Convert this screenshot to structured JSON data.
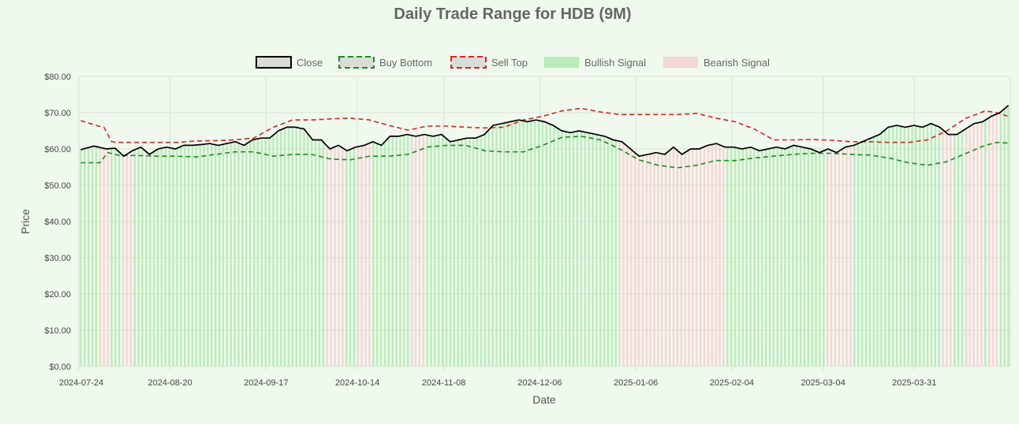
{
  "chart_data": {
    "type": "line",
    "title": "Daily Trade Range for HDB (9M)",
    "xlabel": "Date",
    "ylabel": "Price",
    "ylim": [
      0,
      80
    ],
    "y_ticks": [
      {
        "value": 0,
        "label": "$0.00"
      },
      {
        "value": 10,
        "label": "$10.00"
      },
      {
        "value": 20,
        "label": "$20.00"
      },
      {
        "value": 30,
        "label": "$30.00"
      },
      {
        "value": 40,
        "label": "$40.00"
      },
      {
        "value": 50,
        "label": "$50.00"
      },
      {
        "value": 60,
        "label": "$60.00"
      },
      {
        "value": 70,
        "label": "$70.00"
      },
      {
        "value": 80,
        "label": "$80.00"
      }
    ],
    "x_tick_labels": [
      "2024-07-24",
      "2024-08-20",
      "2024-09-17",
      "2024-10-14",
      "2024-11-08",
      "2024-12-06",
      "2025-01-06",
      "2025-02-04",
      "2025-03-04",
      "2025-03-31"
    ],
    "x_tick_indices": [
      0,
      19,
      39,
      58,
      76,
      96,
      116,
      136,
      155,
      174
    ],
    "n_days": 195,
    "legend": [
      {
        "label": "Close",
        "color": "#000000",
        "fill": "#d9ddd6",
        "dashed": false
      },
      {
        "label": "Buy Bottom",
        "color": "#1e8c1e",
        "fill": "#d9ddd6",
        "dashed": true
      },
      {
        "label": "Sell Top",
        "color": "#e02020",
        "fill": "#d9ddd6",
        "dashed": true
      },
      {
        "label": "Bullish Signal",
        "color": "#b8ecb8",
        "fill": "#b8ecb8",
        "dashed": false
      },
      {
        "label": "Bearish Signal",
        "color": "#f3d6d6",
        "fill": "#f3d6d6",
        "dashed": false
      }
    ],
    "colors": {
      "bullish": "#b9ecb9",
      "bearish": "#f5d5d5",
      "grid": "#d6e3d2",
      "close": "#000000",
      "buy": "#1e8c1e",
      "sell": "#e02020"
    },
    "series": [
      {
        "name": "Close",
        "keypoints": [
          [
            0,
            59.8
          ],
          [
            3,
            60.8
          ],
          [
            6,
            60
          ],
          [
            8,
            60.2
          ],
          [
            10,
            58
          ],
          [
            12,
            59.5
          ],
          [
            14,
            60.5
          ],
          [
            16,
            58.5
          ],
          [
            18,
            60
          ],
          [
            20,
            60.5
          ],
          [
            22,
            60
          ],
          [
            24,
            61
          ],
          [
            26,
            61
          ],
          [
            28,
            61.2
          ],
          [
            30,
            61.5
          ],
          [
            32,
            61
          ],
          [
            34,
            61.5
          ],
          [
            36,
            62
          ],
          [
            38,
            61
          ],
          [
            40,
            62.5
          ],
          [
            42,
            63
          ],
          [
            44,
            63
          ],
          [
            46,
            65
          ],
          [
            48,
            66
          ],
          [
            50,
            66
          ],
          [
            52,
            65.5
          ],
          [
            54,
            62.5
          ],
          [
            56,
            62.5
          ],
          [
            58,
            60
          ],
          [
            60,
            61
          ],
          [
            62,
            59.5
          ],
          [
            64,
            60.5
          ],
          [
            66,
            61
          ],
          [
            68,
            62
          ],
          [
            70,
            61
          ],
          [
            72,
            63.5
          ],
          [
            74,
            63.5
          ],
          [
            76,
            64
          ],
          [
            78,
            63.5
          ],
          [
            80,
            64
          ],
          [
            82,
            63.5
          ],
          [
            84,
            64
          ],
          [
            86,
            62
          ],
          [
            88,
            62.5
          ],
          [
            90,
            63
          ],
          [
            92,
            63
          ],
          [
            94,
            64
          ],
          [
            96,
            66.5
          ],
          [
            98,
            67
          ],
          [
            100,
            67.5
          ],
          [
            102,
            68
          ],
          [
            104,
            67.5
          ],
          [
            106,
            68
          ],
          [
            108,
            67.5
          ],
          [
            110,
            66.5
          ],
          [
            112,
            65
          ],
          [
            114,
            64.5
          ],
          [
            116,
            65
          ],
          [
            118,
            64.5
          ],
          [
            120,
            64
          ],
          [
            122,
            63.5
          ],
          [
            124,
            62.5
          ],
          [
            126,
            62
          ],
          [
            128,
            60
          ],
          [
            130,
            58
          ],
          [
            132,
            58.5
          ],
          [
            134,
            59
          ],
          [
            136,
            58.5
          ],
          [
            138,
            60.5
          ],
          [
            140,
            58.5
          ],
          [
            142,
            60
          ],
          [
            144,
            60
          ],
          [
            146,
            61
          ],
          [
            148,
            61.5
          ],
          [
            150,
            60.5
          ],
          [
            152,
            60.5
          ],
          [
            154,
            60
          ],
          [
            156,
            60.5
          ],
          [
            158,
            59.5
          ],
          [
            160,
            60
          ],
          [
            162,
            60.5
          ],
          [
            164,
            60
          ],
          [
            166,
            61
          ],
          [
            168,
            60.5
          ],
          [
            170,
            60
          ],
          [
            172,
            59
          ],
          [
            174,
            60
          ],
          [
            176,
            59
          ],
          [
            178,
            60.5
          ],
          [
            180,
            61
          ],
          [
            182,
            62
          ],
          [
            184,
            63
          ],
          [
            186,
            64
          ],
          [
            188,
            66
          ],
          [
            190,
            66.5
          ],
          [
            192,
            66
          ],
          [
            194,
            66.5
          ],
          [
            196,
            66
          ],
          [
            198,
            67
          ],
          [
            200,
            66
          ],
          [
            202,
            64
          ],
          [
            204,
            64
          ],
          [
            206,
            65.5
          ],
          [
            208,
            67
          ],
          [
            210,
            67.5
          ],
          [
            212,
            69
          ],
          [
            214,
            70
          ],
          [
            216,
            72
          ]
        ]
      },
      {
        "name": "Buy Bottom",
        "keypoints": [
          [
            0,
            56.2
          ],
          [
            5,
            56.2
          ],
          [
            7,
            59
          ],
          [
            10,
            58.2
          ],
          [
            15,
            58.2
          ],
          [
            20,
            58
          ],
          [
            25,
            58
          ],
          [
            30,
            57.8
          ],
          [
            35,
            58.5
          ],
          [
            40,
            59.2
          ],
          [
            45,
            59.2
          ],
          [
            50,
            58
          ],
          [
            55,
            58.5
          ],
          [
            60,
            58.5
          ],
          [
            65,
            57.2
          ],
          [
            70,
            57
          ],
          [
            75,
            58
          ],
          [
            80,
            58
          ],
          [
            85,
            58.5
          ],
          [
            90,
            60.5
          ],
          [
            95,
            61
          ],
          [
            100,
            61
          ],
          [
            105,
            59.5
          ],
          [
            110,
            59.2
          ],
          [
            115,
            59.2
          ],
          [
            120,
            61
          ],
          [
            125,
            63.2
          ],
          [
            130,
            63.5
          ],
          [
            135,
            62.5
          ],
          [
            140,
            60
          ],
          [
            145,
            57
          ],
          [
            150,
            55.5
          ],
          [
            155,
            54.8
          ],
          [
            160,
            55.5
          ],
          [
            165,
            56.8
          ],
          [
            170,
            56.8
          ],
          [
            175,
            57.5
          ],
          [
            180,
            58
          ],
          [
            185,
            58.5
          ],
          [
            190,
            58.8
          ],
          [
            195,
            58.8
          ],
          [
            200,
            58.5
          ],
          [
            205,
            58.3
          ],
          [
            210,
            57.5
          ],
          [
            215,
            56.2
          ],
          [
            220,
            55.5
          ],
          [
            225,
            56.5
          ],
          [
            230,
            58.8
          ],
          [
            235,
            61
          ],
          [
            238,
            61.8
          ],
          [
            241,
            61.6
          ]
        ]
      },
      {
        "name": "Sell Top",
        "keypoints": [
          [
            0,
            67.8
          ],
          [
            4,
            66.5
          ],
          [
            6,
            66
          ],
          [
            8,
            62
          ],
          [
            10,
            61.8
          ],
          [
            15,
            61.8
          ],
          [
            20,
            61.8
          ],
          [
            25,
            61.8
          ],
          [
            30,
            62.2
          ],
          [
            35,
            62.3
          ],
          [
            40,
            62.5
          ],
          [
            45,
            63
          ],
          [
            50,
            66
          ],
          [
            55,
            68
          ],
          [
            60,
            68
          ],
          [
            65,
            68.3
          ],
          [
            70,
            68.5
          ],
          [
            75,
            68
          ],
          [
            80,
            66.5
          ],
          [
            85,
            65.2
          ],
          [
            90,
            66.3
          ],
          [
            95,
            66.3
          ],
          [
            100,
            66
          ],
          [
            105,
            65.8
          ],
          [
            110,
            66
          ],
          [
            115,
            68
          ],
          [
            120,
            69
          ],
          [
            125,
            70.5
          ],
          [
            130,
            71.2
          ],
          [
            135,
            70.2
          ],
          [
            140,
            69.5
          ],
          [
            145,
            69.5
          ],
          [
            150,
            69.5
          ],
          [
            155,
            69.5
          ],
          [
            160,
            69.8
          ],
          [
            165,
            68.5
          ],
          [
            170,
            67.5
          ],
          [
            175,
            65.5
          ],
          [
            180,
            62.5
          ],
          [
            185,
            62.5
          ],
          [
            190,
            62.6
          ],
          [
            195,
            62.4
          ],
          [
            200,
            62
          ],
          [
            205,
            62
          ],
          [
            210,
            61.8
          ],
          [
            215,
            61.8
          ],
          [
            220,
            62.5
          ],
          [
            225,
            65
          ],
          [
            230,
            68.5
          ],
          [
            235,
            70.5
          ],
          [
            238,
            70
          ],
          [
            241,
            69
          ]
        ]
      }
    ],
    "bearish_ranges": [
      [
        5,
        7
      ],
      [
        11,
        13
      ],
      [
        64,
        68
      ],
      [
        72,
        75
      ],
      [
        86,
        89
      ],
      [
        140,
        158
      ],
      [
        158,
        167
      ],
      [
        194,
        200
      ],
      [
        224,
        226
      ],
      [
        230,
        234
      ],
      [
        236,
        238
      ]
    ]
  }
}
